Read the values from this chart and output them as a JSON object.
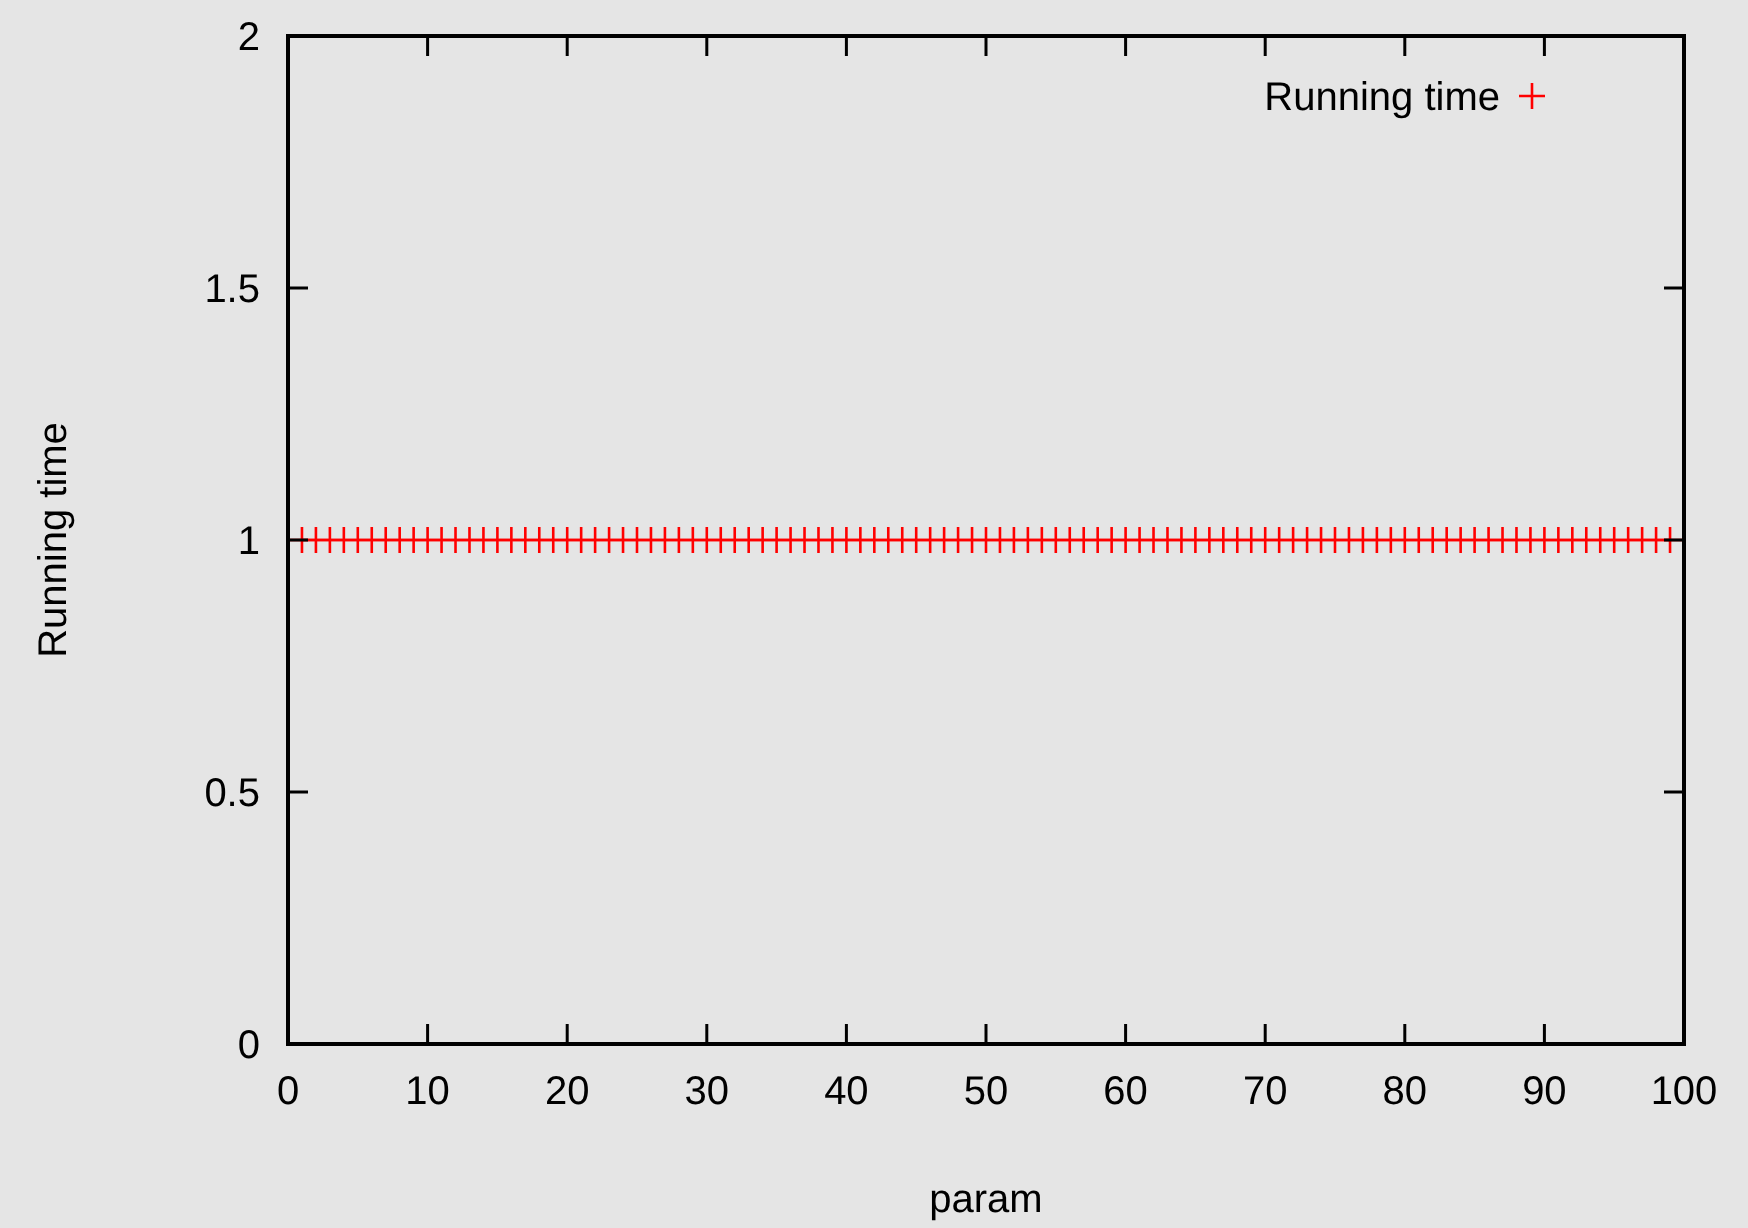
{
  "chart_data": {
    "type": "scatter",
    "xlabel": "param",
    "ylabel": "Running time",
    "x": [
      1,
      2,
      3,
      4,
      5,
      6,
      7,
      8,
      9,
      10,
      11,
      12,
      13,
      14,
      15,
      16,
      17,
      18,
      19,
      20,
      21,
      22,
      23,
      24,
      25,
      26,
      27,
      28,
      29,
      30,
      31,
      32,
      33,
      34,
      35,
      36,
      37,
      38,
      39,
      40,
      41,
      42,
      43,
      44,
      45,
      46,
      47,
      48,
      49,
      50,
      51,
      52,
      53,
      54,
      55,
      56,
      57,
      58,
      59,
      60,
      61,
      62,
      63,
      64,
      65,
      66,
      67,
      68,
      69,
      70,
      71,
      72,
      73,
      74,
      75,
      76,
      77,
      78,
      79,
      80,
      81,
      82,
      83,
      84,
      85,
      86,
      87,
      88,
      89,
      90,
      91,
      92,
      93,
      94,
      95,
      96,
      97,
      98,
      99
    ],
    "series": [
      {
        "name": "Running time",
        "color": "#ff0000",
        "values": [
          1,
          1,
          1,
          1,
          1,
          1,
          1,
          1,
          1,
          1,
          1,
          1,
          1,
          1,
          1,
          1,
          1,
          1,
          1,
          1,
          1,
          1,
          1,
          1,
          1,
          1,
          1,
          1,
          1,
          1,
          1,
          1,
          1,
          1,
          1,
          1,
          1,
          1,
          1,
          1,
          1,
          1,
          1,
          1,
          1,
          1,
          1,
          1,
          1,
          1,
          1,
          1,
          1,
          1,
          1,
          1,
          1,
          1,
          1,
          1,
          1,
          1,
          1,
          1,
          1,
          1,
          1,
          1,
          1,
          1,
          1,
          1,
          1,
          1,
          1,
          1,
          1,
          1,
          1,
          1,
          1,
          1,
          1,
          1,
          1,
          1,
          1,
          1,
          1,
          1,
          1,
          1,
          1,
          1,
          1,
          1,
          1,
          1,
          1
        ]
      }
    ],
    "xlim": [
      0,
      100
    ],
    "xticks": [
      0,
      10,
      20,
      30,
      40,
      50,
      60,
      70,
      80,
      90,
      100
    ],
    "ylim": [
      0,
      2
    ],
    "yticks": [
      0,
      0.5,
      1,
      1.5,
      2
    ],
    "grid": false,
    "legend": "top right",
    "marker": "cross"
  }
}
